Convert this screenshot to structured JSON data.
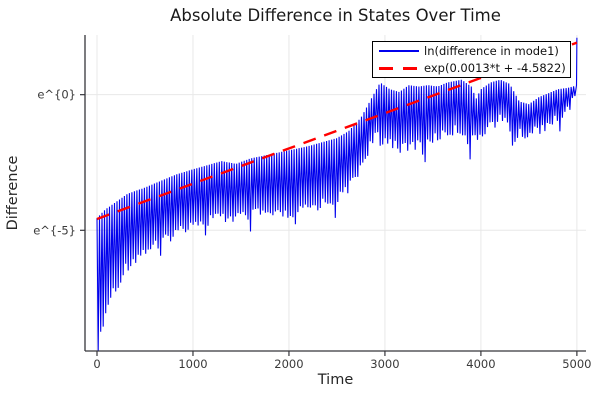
{
  "chart_data": {
    "type": "line",
    "title": "Absolute Difference in States Over Time",
    "xlabel": "Time",
    "ylabel": "Difference",
    "x_ticks": [
      0,
      1000,
      2000,
      3000,
      4000,
      5000
    ],
    "y_ticks": [
      {
        "label": "e^{0}",
        "ln_value": 0
      },
      {
        "label": "e^{-5}",
        "ln_value": -5
      }
    ],
    "xlim_t": [
      -125,
      5095
    ],
    "ylim_ln": [
      -9.45,
      2.2
    ],
    "grid": true,
    "grid_color": "#e8e8e8",
    "spine_color": "#36363b",
    "tick_label_color": "#3a3a3a",
    "series": [
      {
        "name": "ln(difference in mode1)",
        "color": "#0000ee",
        "style": "solid",
        "kind": "oscillating-log-magnitude",
        "half_period_t": 26,
        "upper_envelope_ln": [
          [
            0,
            -4.55
          ],
          [
            80,
            -4.25
          ],
          [
            180,
            -4.0
          ],
          [
            320,
            -3.65
          ],
          [
            480,
            -3.45
          ],
          [
            650,
            -3.2
          ],
          [
            820,
            -2.95
          ],
          [
            1000,
            -2.75
          ],
          [
            1150,
            -2.6
          ],
          [
            1300,
            -2.45
          ],
          [
            1450,
            -2.55
          ],
          [
            1600,
            -2.35
          ],
          [
            1800,
            -2.2
          ],
          [
            2000,
            -2.05
          ],
          [
            2200,
            -1.9
          ],
          [
            2350,
            -1.75
          ],
          [
            2500,
            -1.6
          ],
          [
            2620,
            -1.35
          ],
          [
            2750,
            -0.85
          ],
          [
            2850,
            -0.2
          ],
          [
            2950,
            0.45
          ],
          [
            3050,
            0.2
          ],
          [
            3150,
            0.1
          ],
          [
            3250,
            0.35
          ],
          [
            3350,
            0.3
          ],
          [
            3450,
            0.35
          ],
          [
            3550,
            0.3
          ],
          [
            3650,
            0.45
          ],
          [
            3800,
            0.55
          ],
          [
            3900,
            0.3
          ],
          [
            3950,
            -0.15
          ],
          [
            4000,
            0.2
          ],
          [
            4100,
            0.45
          ],
          [
            4200,
            0.55
          ],
          [
            4300,
            0.4
          ],
          [
            4400,
            -0.25
          ],
          [
            4500,
            -0.35
          ],
          [
            4600,
            -0.1
          ],
          [
            4700,
            0.05
          ],
          [
            4800,
            0.2
          ],
          [
            4900,
            0.25
          ],
          [
            4960,
            0.3
          ],
          [
            5000,
            0.35
          ]
        ],
        "lower_envelope_ln": [
          [
            0,
            -9.4
          ],
          [
            40,
            -8.7
          ],
          [
            90,
            -7.9
          ],
          [
            150,
            -7.1
          ],
          [
            230,
            -6.5
          ],
          [
            320,
            -6.05
          ],
          [
            430,
            -5.7
          ],
          [
            560,
            -5.4
          ],
          [
            700,
            -5.1
          ],
          [
            850,
            -4.8
          ],
          [
            1000,
            -4.45
          ],
          [
            1150,
            -4.3
          ],
          [
            1300,
            -4.35
          ],
          [
            1500,
            -4.25
          ],
          [
            1700,
            -4.15
          ],
          [
            1900,
            -4.25
          ],
          [
            2100,
            -4.1
          ],
          [
            2300,
            -3.85
          ],
          [
            2500,
            -3.55
          ],
          [
            2650,
            -3.1
          ],
          [
            2750,
            -2.4
          ],
          [
            2850,
            -1.6
          ],
          [
            2950,
            -1.15
          ],
          [
            3050,
            -1.45
          ],
          [
            3200,
            -1.8
          ],
          [
            3350,
            -1.55
          ],
          [
            3500,
            -1.4
          ],
          [
            3650,
            -1.15
          ],
          [
            3800,
            -1.05
          ],
          [
            3940,
            -1.45
          ],
          [
            4050,
            -1.0
          ],
          [
            4200,
            -0.7
          ],
          [
            4300,
            -0.85
          ],
          [
            4400,
            -1.25
          ],
          [
            4500,
            -1.2
          ],
          [
            4650,
            -0.95
          ],
          [
            4800,
            -0.55
          ],
          [
            4920,
            -0.35
          ],
          [
            5000,
            0.4
          ]
        ],
        "beat_period_t": 460,
        "beat_center_t": 1120,
        "beat_extra_depth_ln": 0.75,
        "final_spike": {
          "t": 5000,
          "ln_value": 2.1
        }
      },
      {
        "name": "exp(0.0013*t + -4.5822)",
        "color": "#ff0000",
        "style": "dashed",
        "kind": "exponential-fit",
        "slope": 0.0013,
        "intercept": -4.5822,
        "t_range": [
          0,
          5000
        ],
        "dash_pattern": [
          13,
          9
        ],
        "line_width": 2.4
      }
    ],
    "legend": {
      "position": "top-right",
      "entries": [
        {
          "label": "ln(difference in mode1)",
          "color": "#0000ee",
          "style": "solid"
        },
        {
          "label": "exp(0.0013*t + -4.5822)",
          "color": "#ff0000",
          "style": "dashed"
        }
      ]
    }
  }
}
